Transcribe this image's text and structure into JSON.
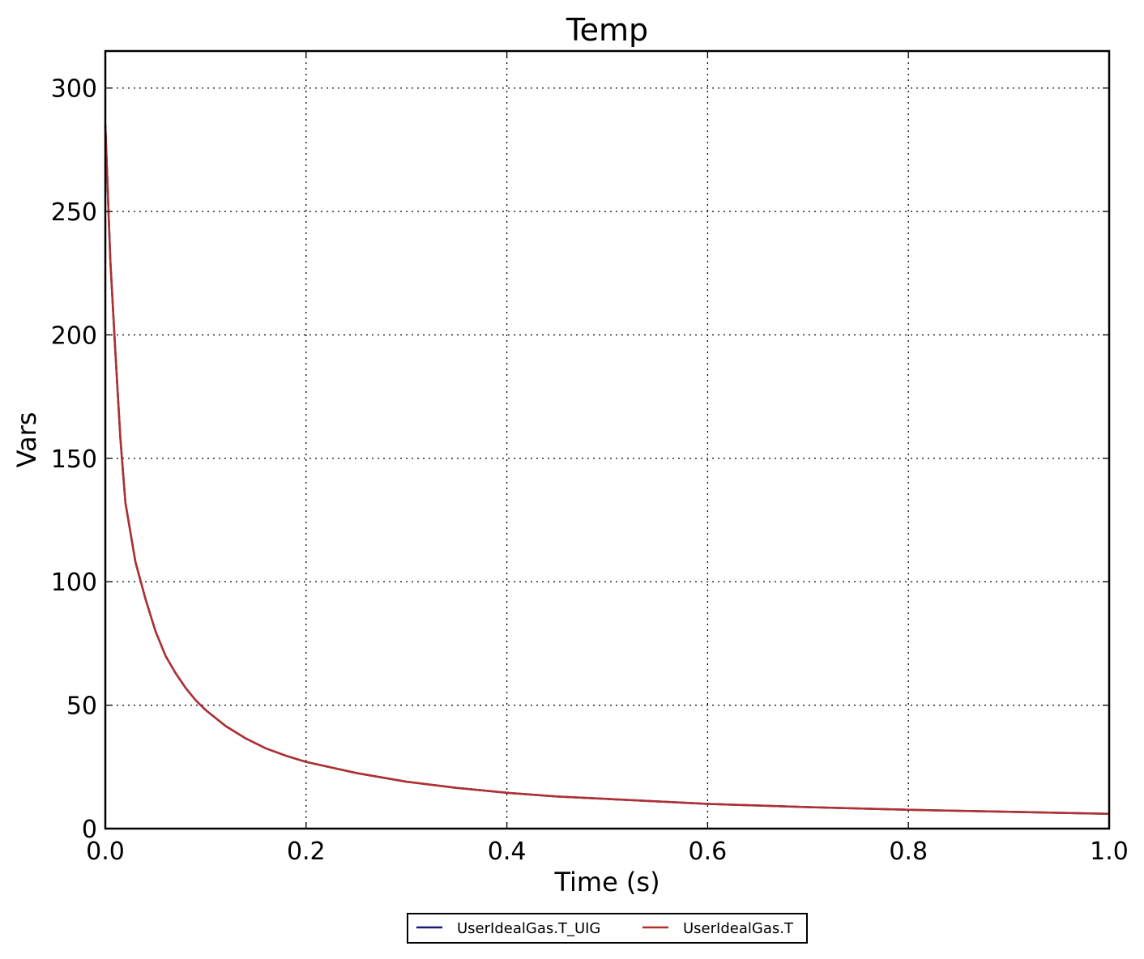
{
  "chart_data": {
    "type": "line",
    "title": "Temp",
    "xlabel": "Time (s)",
    "ylabel": "Vars",
    "xlim": [
      0.0,
      1.0
    ],
    "ylim": [
      0,
      315
    ],
    "xticks": [
      0.0,
      0.2,
      0.4,
      0.6,
      0.8,
      1.0
    ],
    "xtick_labels": [
      "0.0",
      "0.2",
      "0.4",
      "0.6",
      "0.8",
      "1.0"
    ],
    "yticks": [
      0,
      50,
      100,
      150,
      200,
      250,
      300
    ],
    "ytick_labels": [
      "0",
      "50",
      "100",
      "150",
      "200",
      "250",
      "300"
    ],
    "grid": true,
    "legend_position": "bottom-center",
    "x": [
      0.0,
      0.005,
      0.01,
      0.015,
      0.02,
      0.025,
      0.03,
      0.04,
      0.05,
      0.06,
      0.07,
      0.08,
      0.09,
      0.1,
      0.12,
      0.14,
      0.16,
      0.18,
      0.2,
      0.25,
      0.3,
      0.35,
      0.4,
      0.45,
      0.5,
      0.6,
      0.7,
      0.8,
      0.9,
      1.0
    ],
    "series": [
      {
        "name": "UserIdealGas.T_UIG",
        "color": "#1a1a6e",
        "values": [
          285,
          230,
          193,
          158,
          132,
          120,
          108,
          93,
          80,
          70,
          63,
          57,
          52,
          48,
          41.5,
          36.5,
          32.5,
          29.5,
          27,
          22.5,
          19,
          16.5,
          14.5,
          13,
          12,
          10,
          8.7,
          7.6,
          6.8,
          6.0
        ]
      },
      {
        "name": "UserIdealGas.T",
        "color": "#b22f2f",
        "values": [
          285,
          230,
          193,
          158,
          132,
          120,
          108,
          93,
          80,
          70,
          63,
          57,
          52,
          48,
          41.5,
          36.5,
          32.5,
          29.5,
          27,
          22.5,
          19,
          16.5,
          14.5,
          13,
          12,
          10,
          8.7,
          7.6,
          6.8,
          6.0
        ]
      }
    ]
  }
}
